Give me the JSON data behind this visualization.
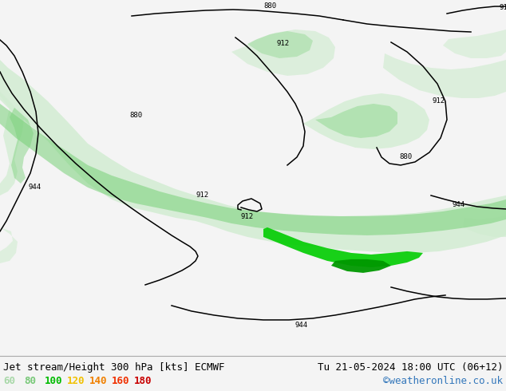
{
  "title_left": "Jet stream/Height 300 hPa [kts] ECMWF",
  "title_right": "Tu 21-05-2024 18:00 UTC (06+12)",
  "credit": "©weatheronline.co.uk",
  "legend_values": [
    "60",
    "80",
    "100",
    "120",
    "140",
    "160",
    "180"
  ],
  "legend_colors": [
    "#a8d8a8",
    "#78c878",
    "#00bb00",
    "#f0c000",
    "#f08000",
    "#f03000",
    "#c80000"
  ],
  "bg_color": "#e8e8e8",
  "land_color": "#e8e8e8",
  "sea_color": "#e8e8e8",
  "bottom_bar_color": "#f4f4f4",
  "title_font_size": 9,
  "legend_font_size": 9,
  "credit_color": "#3377bb",
  "title_color": "#000000",
  "contour_color": "#000000",
  "green_light": "#b8e8b8",
  "green_mid": "#78d078",
  "green_bright": "#00cc00",
  "green_pale": "#d0ecd0"
}
